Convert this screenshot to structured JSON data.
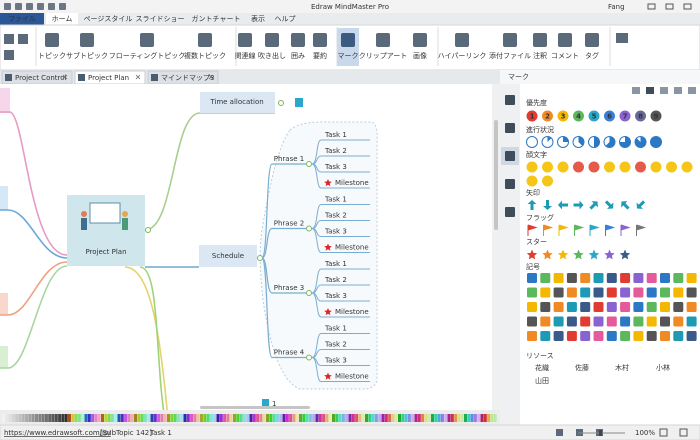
{
  "title_bar": {
    "title": "Edraw MindMaster Pro",
    "user": "Fang"
  },
  "menu": [
    "ファイル",
    "ホーム",
    "ページスタイル",
    "スライドショー",
    "ガントチャート",
    "表示",
    "ヘルプ"
  ],
  "ribbon": [
    "トピック",
    "サブトピック",
    "フローティングトピック",
    "複数トピック",
    "関連線",
    "吹き出し",
    "囲み",
    "要約",
    "マーク",
    "クリップアート",
    "画像",
    "ハイパーリンク",
    "添付ファイル",
    "注釈",
    "コメント",
    "タグ"
  ],
  "doc_tabs": [
    "Project Control",
    "Project Plan",
    "マインドマップ3"
  ],
  "canvas": {
    "central": "Project Plan",
    "time_allocation": "Time allocation",
    "schedule": "Schedule",
    "phases": [
      {
        "label": "Phrase 1",
        "tasks": [
          "Task 1",
          "Task 2",
          "Task 3",
          "Milestone"
        ]
      },
      {
        "label": "Phrase 2",
        "tasks": [
          "Task 1",
          "Task 2",
          "Task 3",
          "Milestone"
        ]
      },
      {
        "label": "Phrase 3",
        "tasks": [
          "Task 1",
          "Task 2",
          "Task 3",
          "Milestone"
        ]
      },
      {
        "label": "Phrase 4",
        "tasks": [
          "Task 1",
          "Task 2",
          "Task 3",
          "Milestone"
        ]
      }
    ],
    "page_number": "1"
  },
  "panel": {
    "title": "マーク",
    "sections": [
      "優先度",
      "進行状況",
      "顔文字",
      "矢印",
      "フラッグ",
      "スター",
      "記号"
    ],
    "priority": [
      "1",
      "2",
      "3",
      "4",
      "5",
      "6",
      "7",
      "8",
      "9"
    ],
    "resources_label": "リソース",
    "resources": [
      "花織",
      "佐藤",
      "木村",
      "小林",
      "山田"
    ]
  },
  "status_bar": {
    "url": "https://www.edrawsoft.com/jp/",
    "topic": "[SubTopic 142]",
    "selection": "Task 1",
    "zoom": "100%"
  }
}
